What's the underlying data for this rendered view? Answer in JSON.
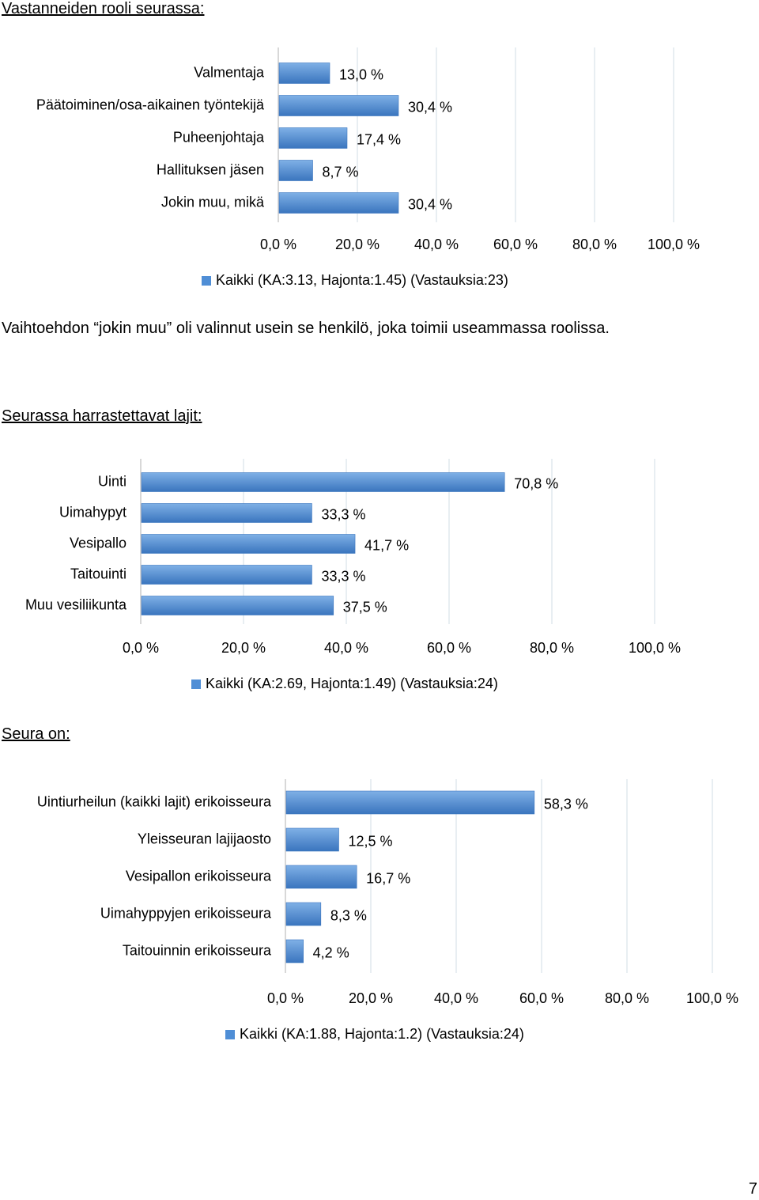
{
  "sections": {
    "role_heading": "Vastanneiden rooli seurassa:",
    "note": "Vaihtoehdon “jokin muu” oli valinnut usein se henkilö, joka toimii useammassa roolissa.",
    "sports_heading": "Seurassa harrastettavat lajit:",
    "club_heading": "Seura on:"
  },
  "page_number": "7",
  "colors": {
    "bar": "#4f8ed6",
    "bar_dark": "#3a75be",
    "grid": "#d9e2ea",
    "axis": "#bfbfbf"
  },
  "chart_data": [
    {
      "type": "bar",
      "orientation": "horizontal",
      "categories": [
        "Valmentaja",
        "Päätoiminen/osa-aikainen työntekijä",
        "Puheenjohtaja",
        "Hallituksen jäsen",
        "Jokin muu, mikä"
      ],
      "values": [
        13.0,
        30.4,
        17.4,
        8.7,
        30.4
      ],
      "value_labels": [
        "13,0 %",
        "30,4 %",
        "17,4 %",
        "8,7 %",
        "30,4 %"
      ],
      "xlim": [
        0,
        100
      ],
      "ticks": [
        "0,0 %",
        "20,0 %",
        "40,0 %",
        "60,0 %",
        "80,0 %",
        "100,0 %"
      ],
      "legend": "Kaikki (KA:3.13, Hajonta:1.45) (Vastauksia:23)",
      "legend_position": "bottom",
      "grid": true
    },
    {
      "type": "bar",
      "orientation": "horizontal",
      "categories": [
        "Uinti",
        "Uimahypyt",
        "Vesipallo",
        "Taitouinti",
        "Muu vesiliikunta"
      ],
      "values": [
        70.8,
        33.3,
        41.7,
        33.3,
        37.5
      ],
      "value_labels": [
        "70,8 %",
        "33,3 %",
        "41,7 %",
        "33,3 %",
        "37,5 %"
      ],
      "xlim": [
        0,
        100
      ],
      "ticks": [
        "0,0 %",
        "20,0 %",
        "40,0 %",
        "60,0 %",
        "80,0 %",
        "100,0 %"
      ],
      "legend": "Kaikki (KA:2.69, Hajonta:1.49) (Vastauksia:24)",
      "legend_position": "bottom",
      "grid": true
    },
    {
      "type": "bar",
      "orientation": "horizontal",
      "categories": [
        "Uintiurheilun (kaikki lajit) erikoisseura",
        "Yleisseuran lajijaosto",
        "Vesipallon erikoisseura",
        "Uimahyppyjen erikoisseura",
        "Taitouinnin erikoisseura"
      ],
      "values": [
        58.3,
        12.5,
        16.7,
        8.3,
        4.2
      ],
      "value_labels": [
        "58,3 %",
        "12,5 %",
        "16,7 %",
        "8,3 %",
        "4,2 %"
      ],
      "xlim": [
        0,
        100
      ],
      "ticks": [
        "0,0 %",
        "20,0 %",
        "40,0 %",
        "60,0 %",
        "80,0 %",
        "100,0 %"
      ],
      "legend": "Kaikki (KA:1.88, Hajonta:1.2) (Vastauksia:24)",
      "legend_position": "bottom",
      "grid": true
    }
  ]
}
